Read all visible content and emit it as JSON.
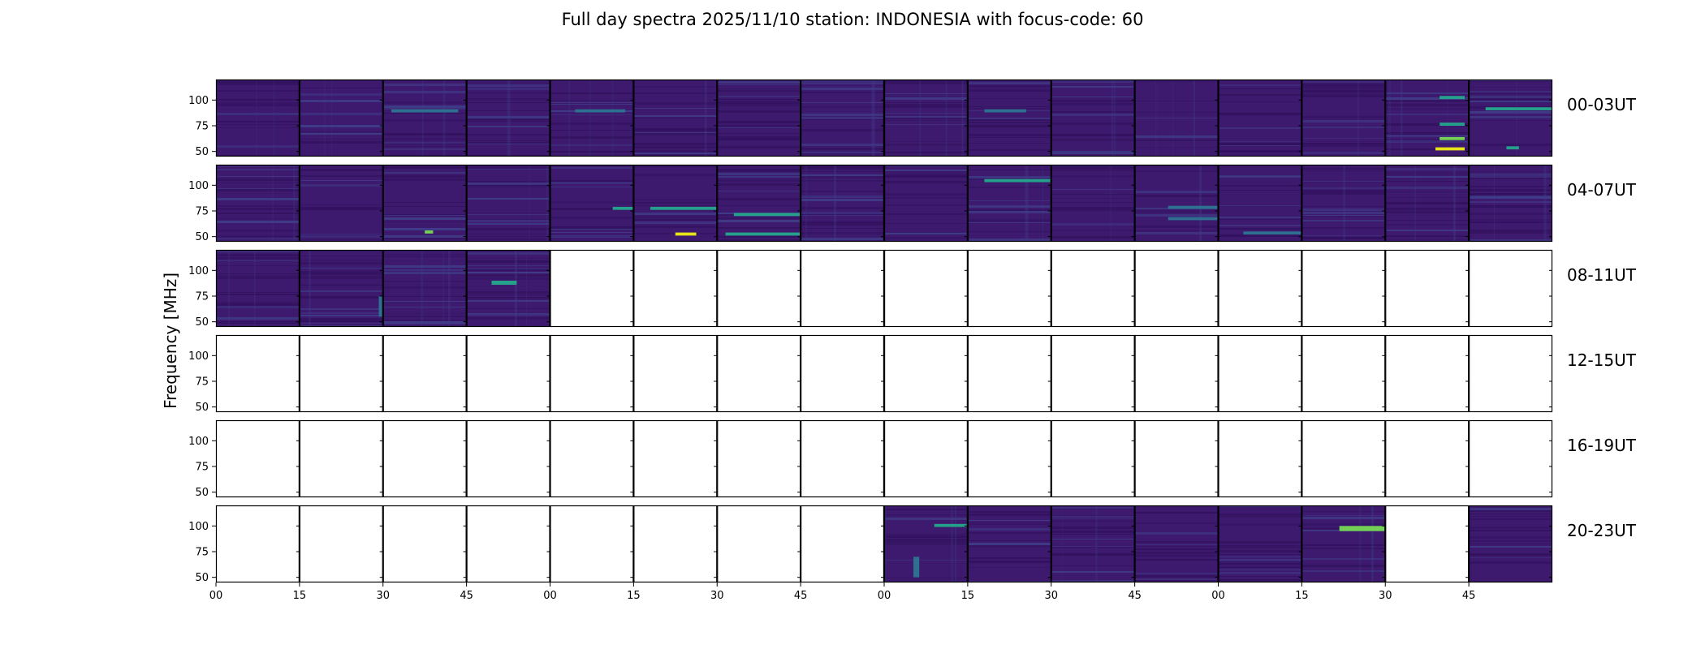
{
  "title": "Full day spectra 2025/11/10 station: INDONESIA with focus-code: 60",
  "chart_data": {
    "type": "heatmap",
    "title": "Full day spectra 2025/11/10 station: INDONESIA with focus-code: 60",
    "xlabel": "",
    "ylabel": "Frequency [MHz]",
    "yticks": [
      50,
      75,
      100
    ],
    "ylim": [
      45,
      120
    ],
    "xtick_labels": [
      "00",
      "15",
      "30",
      "45",
      "00",
      "15",
      "30",
      "45",
      "00",
      "15",
      "30",
      "45",
      "00",
      "15",
      "30",
      "45"
    ],
    "colors": {
      "background": "#3d1a6e",
      "stripe_dark": "#31115e",
      "stripe_light": "#403f8a",
      "mid": "#2d7090",
      "teal": "#25a08a",
      "green": "#74d055",
      "yellow": "#e6e419"
    },
    "rows": [
      {
        "label": "00-03UT",
        "filled": [
          true,
          true,
          true,
          true,
          true,
          true,
          true,
          true,
          true,
          true,
          true,
          true,
          true,
          true,
          true,
          true
        ],
        "bursts": [
          {
            "panel": 2,
            "f0": 88,
            "f1": 91,
            "t0": 0.1,
            "t1": 0.9,
            "level": "mid"
          },
          {
            "panel": 4,
            "f0": 88,
            "f1": 91,
            "t0": 0.3,
            "t1": 0.9,
            "level": "mid"
          },
          {
            "panel": 9,
            "f0": 88,
            "f1": 91,
            "t0": 0.2,
            "t1": 0.7,
            "level": "mid"
          },
          {
            "panel": 14,
            "f0": 101,
            "f1": 104,
            "t0": 0.65,
            "t1": 0.95,
            "level": "teal"
          },
          {
            "panel": 14,
            "f0": 75,
            "f1": 78,
            "t0": 0.65,
            "t1": 0.95,
            "level": "teal"
          },
          {
            "panel": 14,
            "f0": 61,
            "f1": 64,
            "t0": 0.65,
            "t1": 0.95,
            "level": "green"
          },
          {
            "panel": 14,
            "f0": 51,
            "f1": 54,
            "t0": 0.6,
            "t1": 0.95,
            "level": "yellow"
          },
          {
            "panel": 15,
            "f0": 90,
            "f1": 93,
            "t0": 0.2,
            "t1": 1.0,
            "level": "teal"
          },
          {
            "panel": 15,
            "f0": 52,
            "f1": 55,
            "t0": 0.45,
            "t1": 0.6,
            "level": "teal"
          }
        ]
      },
      {
        "label": "04-07UT",
        "filled": [
          true,
          true,
          true,
          true,
          true,
          true,
          true,
          true,
          true,
          true,
          true,
          true,
          true,
          true,
          true,
          true
        ],
        "bursts": [
          {
            "panel": 2,
            "f0": 53,
            "f1": 56,
            "t0": 0.5,
            "t1": 0.6,
            "level": "green"
          },
          {
            "panel": 4,
            "f0": 76,
            "f1": 79,
            "t0": 0.75,
            "t1": 1.0,
            "level": "teal"
          },
          {
            "panel": 5,
            "f0": 76,
            "f1": 79,
            "t0": 0.2,
            "t1": 1.0,
            "level": "teal"
          },
          {
            "panel": 5,
            "f0": 51,
            "f1": 54,
            "t0": 0.5,
            "t1": 0.75,
            "level": "yellow"
          },
          {
            "panel": 6,
            "f0": 70,
            "f1": 73,
            "t0": 0.2,
            "t1": 1.0,
            "level": "teal"
          },
          {
            "panel": 6,
            "f0": 51,
            "f1": 54,
            "t0": 0.1,
            "t1": 1.0,
            "level": "teal"
          },
          {
            "panel": 9,
            "f0": 103,
            "f1": 106,
            "t0": 0.2,
            "t1": 1.0,
            "level": "teal"
          },
          {
            "panel": 11,
            "f0": 77,
            "f1": 80,
            "t0": 0.4,
            "t1": 1.0,
            "level": "mid"
          },
          {
            "panel": 11,
            "f0": 66,
            "f1": 69,
            "t0": 0.4,
            "t1": 1.0,
            "level": "mid"
          },
          {
            "panel": 12,
            "f0": 52,
            "f1": 55,
            "t0": 0.3,
            "t1": 1.0,
            "level": "mid"
          }
        ]
      },
      {
        "label": "08-11UT",
        "filled": [
          true,
          true,
          true,
          true,
          false,
          false,
          false,
          false,
          false,
          false,
          false,
          false,
          false,
          false,
          false,
          false
        ],
        "bursts": [
          {
            "panel": 3,
            "f0": 86,
            "f1": 90,
            "t0": 0.3,
            "t1": 0.6,
            "level": "teal"
          },
          {
            "panel": 1,
            "f0": 55,
            "f1": 75,
            "t0": 0.95,
            "t1": 1.0,
            "level": "mid"
          }
        ]
      },
      {
        "label": "12-15UT",
        "filled": [
          false,
          false,
          false,
          false,
          false,
          false,
          false,
          false,
          false,
          false,
          false,
          false,
          false,
          false,
          false,
          false
        ],
        "bursts": []
      },
      {
        "label": "16-19UT",
        "filled": [
          false,
          false,
          false,
          false,
          false,
          false,
          false,
          false,
          false,
          false,
          false,
          false,
          false,
          false,
          false,
          false
        ],
        "bursts": []
      },
      {
        "label": "20-23UT",
        "filled": [
          false,
          false,
          false,
          false,
          false,
          false,
          false,
          false,
          true,
          true,
          true,
          true,
          true,
          true,
          false,
          true
        ],
        "bursts": [
          {
            "panel": 8,
            "f0": 99,
            "f1": 102,
            "t0": 0.6,
            "t1": 1.0,
            "level": "teal"
          },
          {
            "panel": 8,
            "f0": 50,
            "f1": 70,
            "t0": 0.35,
            "t1": 0.42,
            "level": "mid"
          },
          {
            "panel": 13,
            "f0": 95,
            "f1": 100,
            "t0": 0.45,
            "t1": 1.0,
            "level": "green"
          }
        ]
      }
    ]
  }
}
